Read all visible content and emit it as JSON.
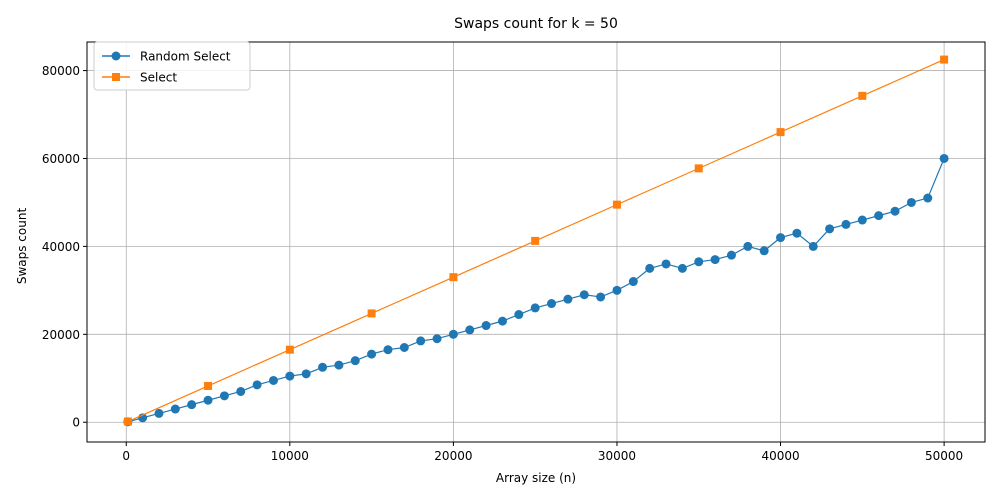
{
  "chart_data": {
    "type": "line",
    "title": "Swaps count for k = 50",
    "xlabel": "Array size (n)",
    "ylabel": "Swaps count",
    "xlim": [
      -2400,
      52500
    ],
    "ylim": [
      -4500,
      86500
    ],
    "xticks": [
      0,
      10000,
      20000,
      30000,
      40000,
      50000
    ],
    "yticks": [
      0,
      20000,
      40000,
      60000,
      80000
    ],
    "grid": true,
    "legend": "top-left",
    "series": [
      {
        "name": "Random Select",
        "color": "#1f77b4",
        "marker": "circle",
        "x": [
          100,
          1000,
          2000,
          3000,
          4000,
          5000,
          6000,
          7000,
          8000,
          9000,
          10000,
          11000,
          12000,
          13000,
          14000,
          15000,
          16000,
          17000,
          18000,
          19000,
          20000,
          21000,
          22000,
          23000,
          24000,
          25000,
          26000,
          27000,
          28000,
          29000,
          30000,
          31000,
          32000,
          33000,
          34000,
          35000,
          36000,
          37000,
          38000,
          39000,
          40000,
          41000,
          42000,
          43000,
          44000,
          45000,
          46000,
          47000,
          48000,
          49000,
          50000
        ],
        "y": [
          100,
          1000,
          2000,
          3000,
          4000,
          5000,
          6000,
          7000,
          8500,
          9500,
          10500,
          11000,
          12500,
          13000,
          14000,
          15500,
          16500,
          17000,
          18500,
          19000,
          20000,
          21000,
          22000,
          23000,
          24500,
          26000,
          27000,
          28000,
          29000,
          28500,
          30000,
          32000,
          35000,
          36000,
          35000,
          36500,
          37000,
          38000,
          40000,
          39000,
          42000,
          43000,
          40000,
          44000,
          45000,
          46000,
          47000,
          48000,
          50000,
          51000,
          60000
        ]
      },
      {
        "name": "Select",
        "color": "#ff7f0e",
        "marker": "square",
        "x": [
          100,
          5000,
          10000,
          15000,
          20000,
          25000,
          30000,
          35000,
          40000,
          45000,
          50000
        ],
        "y": [
          160,
          8250,
          16500,
          24750,
          33000,
          41250,
          49500,
          57750,
          66000,
          74250,
          82500
        ]
      }
    ]
  }
}
